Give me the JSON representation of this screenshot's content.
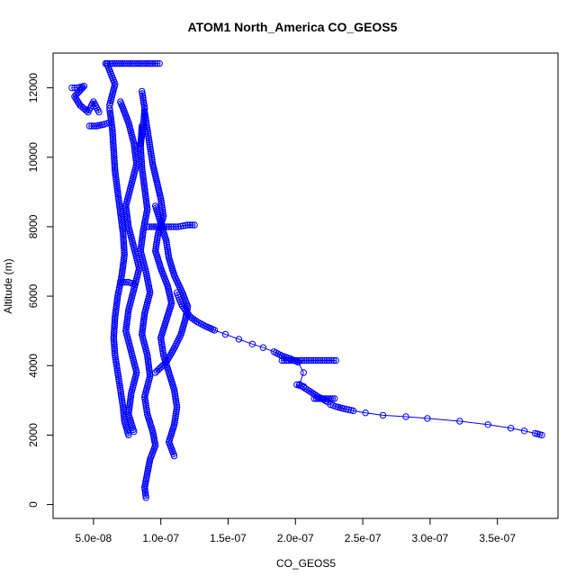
{
  "chart_data": {
    "type": "scatter",
    "title": "ATOM1 North_America CO_GEOS5",
    "xlabel": "CO_GEOS5",
    "ylabel": "Altitude (m)",
    "xlim": [
      2e-08,
      3.95e-07
    ],
    "ylim": [
      -400,
      13000
    ],
    "x_ticks": [
      5e-08,
      1e-07,
      1.5e-07,
      2e-07,
      2.5e-07,
      3e-07,
      3.5e-07
    ],
    "x_tick_labels": [
      "5.0e-08",
      "1.0e-07",
      "1.5e-07",
      "2.0e-07",
      "2.5e-07",
      "3.0e-07",
      "3.5e-07"
    ],
    "y_ticks": [
      0,
      2000,
      4000,
      6000,
      8000,
      10000,
      12000
    ],
    "y_tick_labels": [
      "0",
      "2000",
      "4000",
      "6000",
      "8000",
      "10000",
      "12000"
    ],
    "marker": "open-circle",
    "color": "#0000ff",
    "grid": false,
    "series": [
      {
        "values": [
          {
            "x": 3.83e-07,
            "y": 2000
          },
          {
            "x": 3.78e-07,
            "y": 2050
          },
          {
            "x": 3.7e-07,
            "y": 2120
          },
          {
            "x": 3.6e-07,
            "y": 2200
          },
          {
            "x": 3.43e-07,
            "y": 2300
          },
          {
            "x": 3.22e-07,
            "y": 2400
          },
          {
            "x": 2.98e-07,
            "y": 2480
          },
          {
            "x": 2.82e-07,
            "y": 2530
          },
          {
            "x": 2.65e-07,
            "y": 2570
          },
          {
            "x": 2.52e-07,
            "y": 2640
          },
          {
            "x": 2.43e-07,
            "y": 2700
          },
          {
            "x": 2.36e-07,
            "y": 2760
          },
          {
            "x": 2.3e-07,
            "y": 2820
          },
          {
            "x": 2.26e-07,
            "y": 2880
          },
          {
            "x": 2.24e-07,
            "y": 2950
          },
          {
            "x": 2.21e-07,
            "y": 3020
          },
          {
            "x": 2.17e-07,
            "y": 3100
          },
          {
            "x": 2.13e-07,
            "y": 3200
          },
          {
            "x": 2.09e-07,
            "y": 3300
          },
          {
            "x": 2.03e-07,
            "y": 3460
          },
          {
            "x": 2.06e-07,
            "y": 3800
          },
          {
            "x": 2.02e-07,
            "y": 4100
          },
          {
            "x": 1.96e-07,
            "y": 4200
          },
          {
            "x": 1.9e-07,
            "y": 4280
          },
          {
            "x": 1.84e-07,
            "y": 4400
          },
          {
            "x": 1.76e-07,
            "y": 4520
          },
          {
            "x": 1.68e-07,
            "y": 4620
          },
          {
            "x": 1.58e-07,
            "y": 4760
          },
          {
            "x": 1.48e-07,
            "y": 4900
          },
          {
            "x": 1.4e-07,
            "y": 5020
          },
          {
            "x": 1.33e-07,
            "y": 5140
          },
          {
            "x": 1.27e-07,
            "y": 5260
          },
          {
            "x": 1.22e-07,
            "y": 5400
          },
          {
            "x": 1.19e-07,
            "y": 5560
          },
          {
            "x": 1.16e-07,
            "y": 5720
          },
          {
            "x": 1.14e-07,
            "y": 5900
          },
          {
            "x": 1.12e-07,
            "y": 6100
          }
        ]
      },
      {
        "values": [
          {
            "x": 1.9e-07,
            "y": 4150
          },
          {
            "x": 2e-07,
            "y": 4150
          },
          {
            "x": 2.1e-07,
            "y": 4150
          },
          {
            "x": 2.2e-07,
            "y": 4150
          },
          {
            "x": 2.3e-07,
            "y": 4150
          }
        ]
      },
      {
        "values": [
          {
            "x": 2.14e-07,
            "y": 3050
          },
          {
            "x": 2.2e-07,
            "y": 3050
          },
          {
            "x": 2.29e-07,
            "y": 3050
          }
        ]
      },
      {
        "values": [
          {
            "x": 2.01e-07,
            "y": 3450
          },
          {
            "x": 2.06e-07,
            "y": 3400
          }
        ]
      },
      {
        "values": [
          {
            "x": 8.9e-08,
            "y": 200
          },
          {
            "x": 8.8e-08,
            "y": 500
          },
          {
            "x": 9e-08,
            "y": 900
          },
          {
            "x": 9.2e-08,
            "y": 1300
          },
          {
            "x": 9.6e-08,
            "y": 1700
          },
          {
            "x": 9.4e-08,
            "y": 2100
          },
          {
            "x": 9e-08,
            "y": 2600
          },
          {
            "x": 8.8e-08,
            "y": 3100
          },
          {
            "x": 9.2e-08,
            "y": 3700
          },
          {
            "x": 9e-08,
            "y": 4300
          },
          {
            "x": 8.6e-08,
            "y": 4900
          },
          {
            "x": 8.8e-08,
            "y": 5500
          },
          {
            "x": 9.2e-08,
            "y": 6100
          },
          {
            "x": 8.9e-08,
            "y": 6700
          },
          {
            "x": 8.5e-08,
            "y": 7300
          },
          {
            "x": 8.7e-08,
            "y": 7900
          },
          {
            "x": 9e-08,
            "y": 8500
          },
          {
            "x": 8.8e-08,
            "y": 9100
          },
          {
            "x": 8.6e-08,
            "y": 9700
          },
          {
            "x": 8.5e-08,
            "y": 10300
          },
          {
            "x": 8.6e-08,
            "y": 10900
          }
        ]
      },
      {
        "values": [
          {
            "x": 7.6e-08,
            "y": 2000
          },
          {
            "x": 7.3e-08,
            "y": 2400
          },
          {
            "x": 7.2e-08,
            "y": 2800
          },
          {
            "x": 7e-08,
            "y": 3300
          },
          {
            "x": 6.8e-08,
            "y": 3800
          },
          {
            "x": 6.6e-08,
            "y": 4300
          },
          {
            "x": 6.5e-08,
            "y": 4800
          },
          {
            "x": 6.6e-08,
            "y": 5400
          },
          {
            "x": 6.8e-08,
            "y": 6000
          },
          {
            "x": 7.1e-08,
            "y": 6600
          },
          {
            "x": 7.3e-08,
            "y": 7200
          },
          {
            "x": 7.2e-08,
            "y": 7800
          },
          {
            "x": 7e-08,
            "y": 8400
          },
          {
            "x": 6.8e-08,
            "y": 9000
          },
          {
            "x": 6.6e-08,
            "y": 9600
          },
          {
            "x": 6.5e-08,
            "y": 10200
          },
          {
            "x": 6.4e-08,
            "y": 10800
          },
          {
            "x": 6.2e-08,
            "y": 11400
          }
        ]
      },
      {
        "values": [
          {
            "x": 1.1e-07,
            "y": 1400
          },
          {
            "x": 1.06e-07,
            "y": 1800
          },
          {
            "x": 1.1e-07,
            "y": 2300
          },
          {
            "x": 1.12e-07,
            "y": 2800
          },
          {
            "x": 1.1e-07,
            "y": 3300
          },
          {
            "x": 1.06e-07,
            "y": 3800
          },
          {
            "x": 1.02e-07,
            "y": 4300
          },
          {
            "x": 1e-07,
            "y": 4800
          },
          {
            "x": 1.04e-07,
            "y": 5300
          },
          {
            "x": 1.08e-07,
            "y": 5800
          },
          {
            "x": 1.05e-07,
            "y": 6300
          },
          {
            "x": 1e-07,
            "y": 6800
          },
          {
            "x": 9.6e-08,
            "y": 7300
          },
          {
            "x": 9.8e-08,
            "y": 7800
          },
          {
            "x": 1.02e-07,
            "y": 8300
          },
          {
            "x": 1e-07,
            "y": 8800
          },
          {
            "x": 9.7e-08,
            "y": 9300
          },
          {
            "x": 9.4e-08,
            "y": 9800
          },
          {
            "x": 9.2e-08,
            "y": 10300
          },
          {
            "x": 9e-08,
            "y": 10800
          },
          {
            "x": 8.8e-08,
            "y": 11300
          }
        ]
      },
      {
        "values": [
          {
            "x": 8e-08,
            "y": 2100
          },
          {
            "x": 7.6e-08,
            "y": 2600
          },
          {
            "x": 7.8e-08,
            "y": 3200
          },
          {
            "x": 8.2e-08,
            "y": 3800
          },
          {
            "x": 7.8e-08,
            "y": 4400
          },
          {
            "x": 7.4e-08,
            "y": 5000
          },
          {
            "x": 7.6e-08,
            "y": 5600
          },
          {
            "x": 8e-08,
            "y": 6200
          },
          {
            "x": 8.4e-08,
            "y": 6800
          },
          {
            "x": 8e-08,
            "y": 7400
          },
          {
            "x": 7.6e-08,
            "y": 8000
          },
          {
            "x": 7.4e-08,
            "y": 8600
          },
          {
            "x": 7.8e-08,
            "y": 9200
          },
          {
            "x": 8.2e-08,
            "y": 9800
          },
          {
            "x": 8e-08,
            "y": 10400
          },
          {
            "x": 7.6e-08,
            "y": 11000
          },
          {
            "x": 7e-08,
            "y": 11600
          }
        ]
      },
      {
        "values": [
          {
            "x": 9.6e-08,
            "y": 3800
          },
          {
            "x": 1.04e-07,
            "y": 4100
          },
          {
            "x": 1.1e-07,
            "y": 4500
          },
          {
            "x": 1.15e-07,
            "y": 4900
          },
          {
            "x": 1.18e-07,
            "y": 5300
          },
          {
            "x": 1.2e-07,
            "y": 5700
          },
          {
            "x": 1.16e-07,
            "y": 6100
          },
          {
            "x": 1.1e-07,
            "y": 6600
          },
          {
            "x": 1.06e-07,
            "y": 7100
          },
          {
            "x": 1.04e-07,
            "y": 7600
          },
          {
            "x": 1e-07,
            "y": 8100
          },
          {
            "x": 9.6e-08,
            "y": 8600
          }
        ]
      },
      {
        "values": [
          {
            "x": 5.9e-08,
            "y": 12700
          },
          {
            "x": 6.4e-08,
            "y": 12700
          },
          {
            "x": 7e-08,
            "y": 12700
          },
          {
            "x": 7.6e-08,
            "y": 12700
          },
          {
            "x": 8.2e-08,
            "y": 12700
          },
          {
            "x": 8.8e-08,
            "y": 12700
          },
          {
            "x": 9.4e-08,
            "y": 12700
          },
          {
            "x": 9.9e-08,
            "y": 12700
          }
        ]
      },
      {
        "values": [
          {
            "x": 3.4e-08,
            "y": 12000
          },
          {
            "x": 3.8e-08,
            "y": 12000
          },
          {
            "x": 4.3e-08,
            "y": 12050
          },
          {
            "x": 3.6e-08,
            "y": 11750
          },
          {
            "x": 4e-08,
            "y": 11500
          },
          {
            "x": 4.6e-08,
            "y": 11300
          },
          {
            "x": 5e-08,
            "y": 11600
          },
          {
            "x": 5.4e-08,
            "y": 11300
          }
        ]
      },
      {
        "values": [
          {
            "x": 4.7e-08,
            "y": 10900
          },
          {
            "x": 5.2e-08,
            "y": 10900
          },
          {
            "x": 5.8e-08,
            "y": 10950
          },
          {
            "x": 6.2e-08,
            "y": 11000
          }
        ]
      },
      {
        "values": [
          {
            "x": 8.6e-08,
            "y": 11900
          },
          {
            "x": 8.8e-08,
            "y": 11400
          },
          {
            "x": 8.7e-08,
            "y": 10900
          },
          {
            "x": 8.5e-08,
            "y": 10400
          }
        ]
      },
      {
        "values": [
          {
            "x": 9e-08,
            "y": 8000
          },
          {
            "x": 9.8e-08,
            "y": 8000
          },
          {
            "x": 1.06e-07,
            "y": 8000
          },
          {
            "x": 1.13e-07,
            "y": 8000
          },
          {
            "x": 1.2e-07,
            "y": 8050
          },
          {
            "x": 1.25e-07,
            "y": 8050
          }
        ]
      },
      {
        "values": [
          {
            "x": 7e-08,
            "y": 6400
          },
          {
            "x": 7.6e-08,
            "y": 6400
          },
          {
            "x": 8e-08,
            "y": 6350
          }
        ]
      },
      {
        "values": [
          {
            "x": 6e-08,
            "y": 12700
          },
          {
            "x": 6.3e-08,
            "y": 12400
          },
          {
            "x": 6.6e-08,
            "y": 12100
          },
          {
            "x": 6.4e-08,
            "y": 11800
          },
          {
            "x": 6.2e-08,
            "y": 11500
          }
        ]
      }
    ]
  }
}
